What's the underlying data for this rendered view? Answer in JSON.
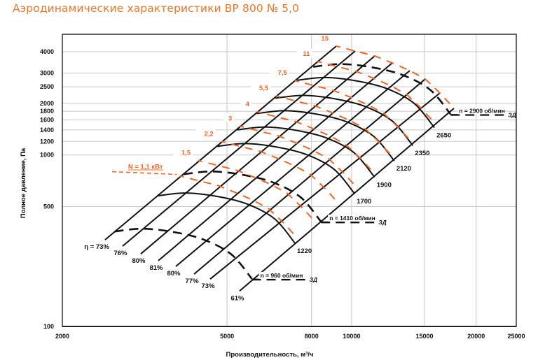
{
  "title": "Аэродинамические характеристики ВР 800 № 5,0",
  "chart_data": {
    "type": "line",
    "title": "Аэродинамические характеристики ВР 800 № 5,0",
    "xlabel": "Производительность, м³/ч",
    "ylabel": "Полное давление, Па",
    "xscale": "log",
    "yscale": "log",
    "xlim": [
      2000,
      25000
    ],
    "ylim": [
      100,
      4000
    ],
    "xticks": [
      2000,
      5000,
      8000,
      10000,
      15000,
      20000,
      25000
    ],
    "yticks": [
      100,
      500,
      1000,
      1200,
      1400,
      1600,
      1800,
      2000,
      2500,
      3000,
      4000
    ],
    "grid": true,
    "colors": {
      "power": "#f26522",
      "title": "#ee7623",
      "lines": "#111111",
      "grid": "#c8c8c8"
    },
    "efficiency_lines": [
      {
        "label": "η = 73%",
        "bottom": [
          2536,
          320
        ],
        "top": [
          9180,
          4313
        ]
      },
      {
        "label": "76%",
        "bottom": [
          2796,
          294
        ],
        "top": [
          10198,
          4038
        ]
      },
      {
        "label": "80%",
        "bottom": [
          3094,
          265
        ],
        "top": [
          11374,
          3782
        ]
      },
      {
        "label": "81%",
        "bottom": [
          3411,
          242
        ],
        "top": [
          12536,
          3443
        ]
      },
      {
        "label": "80%",
        "bottom": [
          3760,
          224
        ],
        "top": [
          13822,
          3105
        ]
      },
      {
        "label": "77%",
        "bottom": [
          4162,
          202
        ],
        "top": [
          15062,
          2774
        ]
      },
      {
        "label": "73%",
        "bottom": [
          4552,
          189
        ],
        "top": [
          16344,
          2299
        ]
      },
      {
        "label": "61%",
        "bottom": [
          5361,
          161
        ],
        "top": [
          17670,
          1871
        ]
      }
    ],
    "speed_reference": {
      "rpm": 1220,
      "points": [
        [
          3398,
          578
        ],
        [
          3972,
          600
        ],
        [
          4733,
          573
        ],
        [
          5596,
          517
        ],
        [
          6517,
          424
        ],
        [
          7296,
          306
        ]
      ]
    },
    "speed_curves": [
      {
        "rpm": 1220,
        "label": "1220",
        "style": "solid"
      },
      {
        "rpm": 1700,
        "label": "1700",
        "style": "solid"
      },
      {
        "rpm": 1900,
        "label": "1900",
        "style": "solid"
      },
      {
        "rpm": 2120,
        "label": "2120",
        "style": "solid"
      },
      {
        "rpm": 2350,
        "label": "2350",
        "style": "solid"
      },
      {
        "rpm": 2650,
        "label": "2650",
        "style": "solid"
      },
      {
        "rpm": 960,
        "label": "n = 960 об/мин",
        "tag": "ЗД",
        "style": "dashed"
      },
      {
        "rpm": 1410,
        "label": "n = 1410 об/мин",
        "tag": "ЗД",
        "style": "dashed"
      },
      {
        "rpm": 2900,
        "label": "n = 2900 об/мин",
        "tag": "ЗД",
        "style": "dashed"
      }
    ],
    "power_reference_kw": 15,
    "power_curves": [
      {
        "kw": 1.1,
        "label": "N = 1,1 кВт"
      },
      {
        "kw": 1.5,
        "label": "1,5"
      },
      {
        "kw": 2.2,
        "label": "2,2"
      },
      {
        "kw": 3,
        "label": "3"
      },
      {
        "kw": 4,
        "label": "4"
      },
      {
        "kw": 5.5,
        "label": "5,5"
      },
      {
        "kw": 7.5,
        "label": "7,5"
      },
      {
        "kw": 11,
        "label": "11"
      },
      {
        "kw": 15,
        "label": "15"
      }
    ]
  }
}
